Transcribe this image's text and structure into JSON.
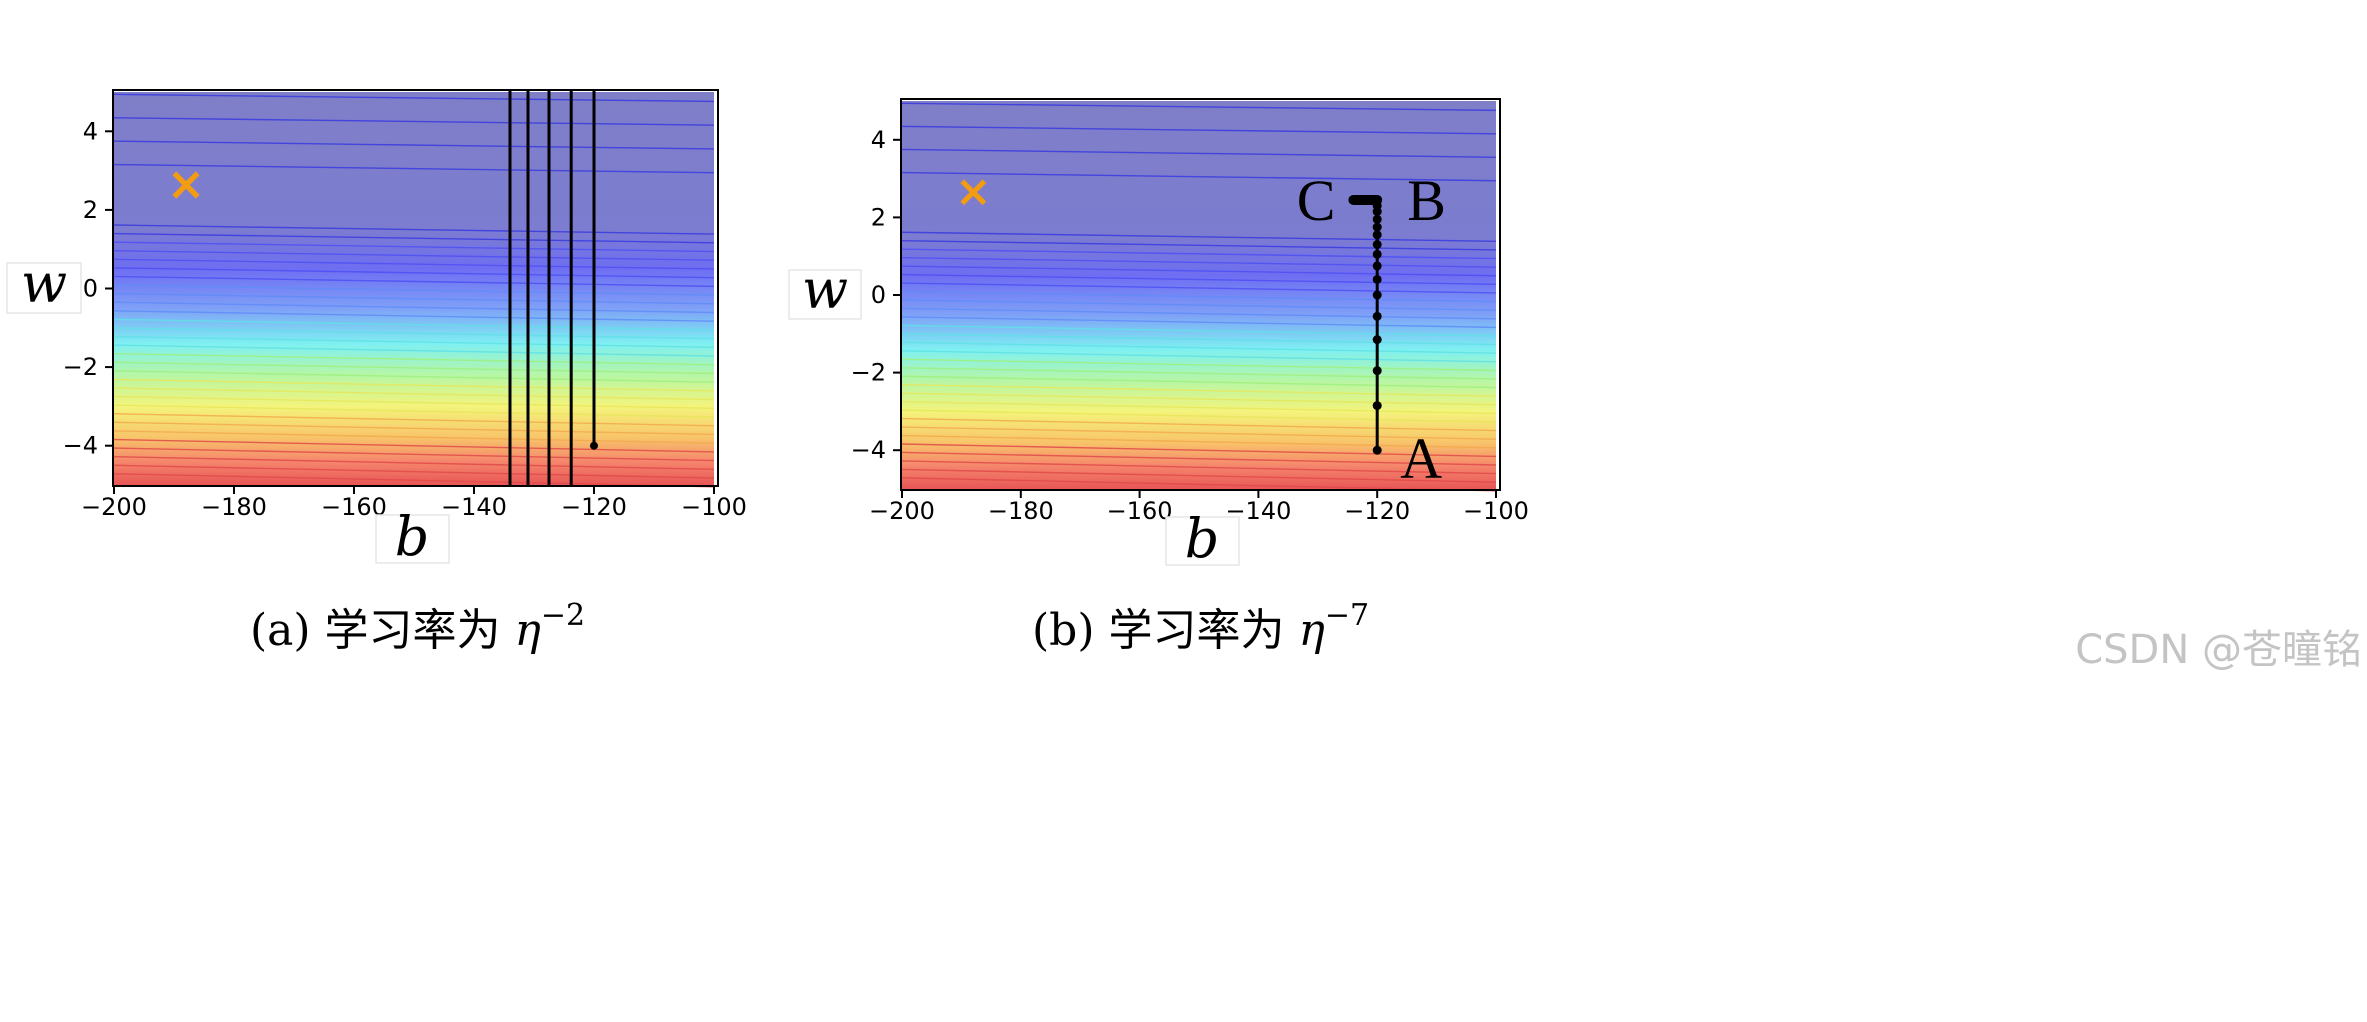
{
  "chart_data": [
    {
      "type": "contour",
      "xlabel": "b",
      "ylabel": "w",
      "xlim": [
        -200,
        -100
      ],
      "ylim": [
        -5,
        5
      ],
      "x_ticks": [
        "−200",
        "−180",
        "−160",
        "−140",
        "−120",
        "−100"
      ],
      "y_ticks": [
        "4",
        "2",
        "0",
        "−2",
        "−4"
      ],
      "colormap": "jet",
      "optimum_marker": {
        "b": -188,
        "w": 2.67,
        "symbol": "×",
        "color": "#f39c12"
      },
      "trajectory": {
        "start": {
          "b": -120,
          "w": -4
        },
        "vertical_lines_b": [
          -120,
          -123.8,
          -127.5,
          -131,
          -134
        ],
        "color": "#000000"
      },
      "caption_prefix": "(a) 学习率为 ",
      "caption_eta": "η",
      "caption_exp": "−2"
    },
    {
      "type": "contour",
      "xlabel": "b",
      "ylabel": "w",
      "xlim": [
        -200,
        -100
      ],
      "ylim": [
        -5,
        5
      ],
      "x_ticks": [
        "−200",
        "−180",
        "−160",
        "−140",
        "−120",
        "−100"
      ],
      "y_ticks": [
        "4",
        "2",
        "0",
        "−2",
        "−4"
      ],
      "colormap": "jet",
      "optimum_marker": {
        "b": -188,
        "w": 2.67,
        "symbol": "×",
        "color": "#f39c12"
      },
      "trajectory": {
        "points": [
          {
            "b": -120,
            "w": -4.0
          },
          {
            "b": -120,
            "w": -2.85
          },
          {
            "b": -120,
            "w": -1.95
          },
          {
            "b": -120,
            "w": -1.15
          },
          {
            "b": -120,
            "w": -0.55
          },
          {
            "b": -120,
            "w": 0.0
          },
          {
            "b": -120,
            "w": 0.4
          },
          {
            "b": -120,
            "w": 0.75
          },
          {
            "b": -120,
            "w": 1.05
          },
          {
            "b": -120,
            "w": 1.3
          },
          {
            "b": -120,
            "w": 1.55
          },
          {
            "b": -120,
            "w": 1.75
          },
          {
            "b": -120,
            "w": 1.95
          },
          {
            "b": -120,
            "w": 2.15
          },
          {
            "b": -120,
            "w": 2.3
          },
          {
            "b": -120,
            "w": 2.45
          }
        ],
        "horizontal_segment": {
          "b_from": -124,
          "b_to": -120,
          "w": 2.45
        },
        "color": "#000000"
      },
      "point_labels": [
        {
          "text": "A",
          "b": -120,
          "w": -4.0
        },
        {
          "text": "B",
          "b": -120,
          "w": 2.45
        },
        {
          "text": "C",
          "b": -124,
          "w": 2.45
        }
      ],
      "caption_prefix": "(b) 学习率为 ",
      "caption_eta": "η",
      "caption_exp": "−7"
    }
  ],
  "watermark": "CSDN @苍曈铭"
}
